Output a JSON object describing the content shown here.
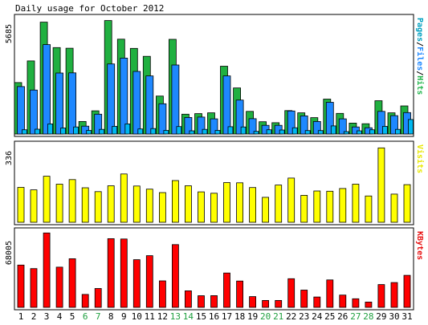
{
  "chart_data": {
    "type": "bar",
    "title": "Daily usage for October 2012",
    "categories": [
      "1",
      "2",
      "3",
      "4",
      "5",
      "6",
      "7",
      "8",
      "9",
      "10",
      "11",
      "12",
      "13",
      "14",
      "15",
      "16",
      "17",
      "18",
      "19",
      "20",
      "21",
      "22",
      "23",
      "24",
      "25",
      "26",
      "27",
      "28",
      "29",
      "30",
      "31"
    ],
    "weekend_days": [
      "6",
      "7",
      "13",
      "14",
      "20",
      "21",
      "27",
      "28"
    ],
    "panels": [
      {
        "id": "hits",
        "side_label_parts": [
          {
            "text": "Pages",
            "color": "#00a0c0"
          },
          {
            "text": "/",
            "color": "#000000"
          },
          {
            "text": "Files",
            "color": "#1e88ff"
          },
          {
            "text": "/",
            "color": "#000000"
          },
          {
            "text": "Hits",
            "color": "#21b54b"
          }
        ],
        "y_max_label": "5685",
        "y_max": 5685,
        "series": [
          {
            "name": "Hits",
            "color": "#20b040",
            "values": [
              2550,
              3620,
              5540,
              4280,
              4250,
              620,
              1150,
              5620,
              4700,
              4240,
              3850,
              1880,
              4690,
              980,
              1010,
              1050,
              3360,
              2280,
              1120,
              610,
              560,
              1160,
              1050,
              810,
              1730,
              1020,
              540,
              510,
              1650,
              1050,
              1390
            ]
          },
          {
            "name": "Files",
            "color": "#1e88ff",
            "values": [
              2350,
              2180,
              4430,
              3020,
              3030,
              390,
              980,
              3470,
              3760,
              3100,
              2880,
              1500,
              3420,
              820,
              840,
              750,
              2880,
              1680,
              760,
              430,
              430,
              1140,
              900,
              620,
              1570,
              750,
              350,
              310,
              1120,
              910,
              1060
            ]
          },
          {
            "name": "Pages",
            "color": "#00b8f0",
            "values": [
              210,
              240,
              500,
              300,
              350,
              180,
              230,
              380,
              500,
              250,
              270,
              180,
              370,
              160,
              230,
              180,
              360,
              350,
              130,
              210,
              200,
              310,
              170,
              170,
              400,
              120,
              160,
              210,
              380,
              230,
              720
            ]
          }
        ]
      },
      {
        "id": "visits",
        "side_label_parts": [
          {
            "text": "Visits",
            "color": "#e8e800"
          }
        ],
        "y_max_label": "336",
        "y_max": 336,
        "series": [
          {
            "name": "Visits",
            "color": "#ffff00",
            "values": [
              154,
              143,
              203,
              168,
              188,
              152,
              135,
              161,
              213,
              160,
              146,
              131,
              184,
              161,
              134,
              128,
              175,
              174,
              153,
              110,
              164,
              195,
              119,
              138,
              137,
              149,
              168,
              116,
              328,
              124,
              166
            ]
          }
        ]
      },
      {
        "id": "kbytes",
        "side_label_parts": [
          {
            "text": "KBytes",
            "color": "#e81010"
          }
        ],
        "y_max_label": "68005",
        "y_max": 68005,
        "series": [
          {
            "name": "KBytes",
            "color": "#ff0000",
            "values": [
              38500,
              35300,
              67800,
              36600,
              44300,
              11800,
              17200,
              62600,
              62300,
              43400,
              47100,
              24100,
              57200,
              15100,
              10600,
              10700,
              31300,
              24000,
              9800,
              6300,
              6300,
              26100,
              15700,
              9400,
              25000,
              11200,
              7800,
              4800,
              20800,
              22600,
              29200
            ]
          }
        ]
      }
    ]
  }
}
